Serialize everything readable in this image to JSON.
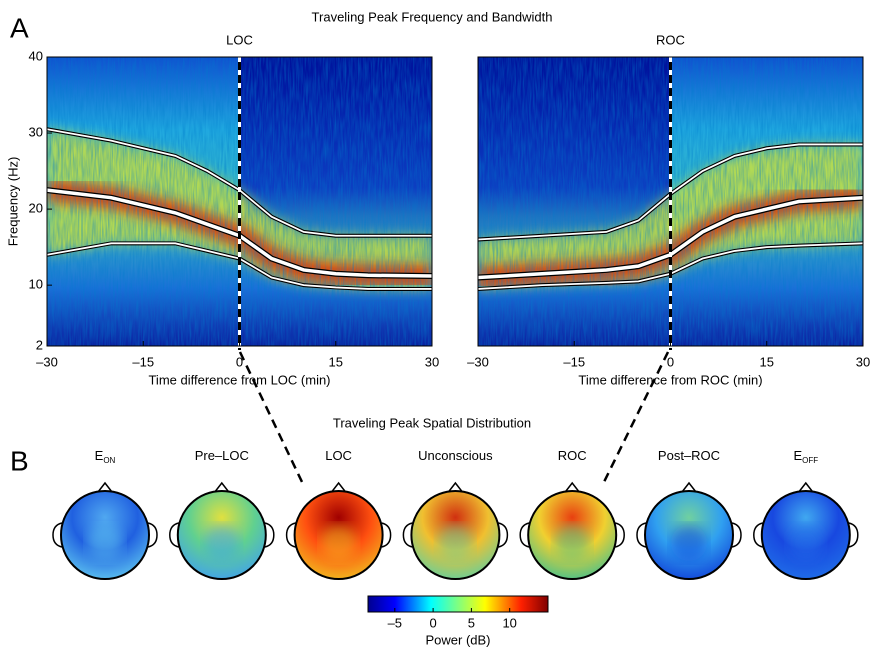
{
  "figure_title": "Traveling Peak Frequency and Bandwidth",
  "panel_label_a": "A",
  "panel_label_b": "B",
  "chart_data": [
    {
      "type": "line",
      "title": "LOC",
      "xlabel": "Time difference from LOC (min)",
      "ylabel": "Frequency (Hz)",
      "x": [
        -30,
        -20,
        -10,
        -5,
        0,
        5,
        10,
        15,
        20,
        30
      ],
      "series": [
        {
          "color": "#ffffff",
          "values": [
            30.5,
            29,
            27,
            25,
            22.5,
            19,
            17,
            16.5,
            16.5,
            16.5
          ]
        },
        {
          "color": "#ffffff",
          "values": [
            22.5,
            21.5,
            19.5,
            18,
            16.5,
            13.5,
            12,
            11.5,
            11.3,
            11.2
          ]
        },
        {
          "color": "#ffffff",
          "values": [
            14,
            15.5,
            15.5,
            14.5,
            13.5,
            11,
            10,
            9.7,
            9.5,
            9.5
          ]
        }
      ],
      "xlim": [
        -30,
        30
      ],
      "xticks": [
        {
          "value": -30,
          "label": "–30"
        },
        {
          "value": -15,
          "label": "–15"
        },
        0,
        15,
        30
      ],
      "ylim": [
        2,
        40
      ],
      "yticks": [
        2,
        10,
        20,
        30,
        40
      ]
    },
    {
      "type": "line",
      "title": "ROC",
      "xlabel": "Time difference from ROC (min)",
      "x": [
        -30,
        -20,
        -10,
        -5,
        0,
        5,
        10,
        15,
        20,
        30
      ],
      "series": [
        {
          "color": "#ffffff",
          "values": [
            16,
            16.5,
            17,
            18.5,
            22,
            25,
            27,
            28,
            28.5,
            28.5
          ]
        },
        {
          "color": "#ffffff",
          "values": [
            11,
            11.5,
            12,
            12.5,
            14,
            17,
            19,
            20,
            21,
            21.5
          ]
        },
        {
          "color": "#ffffff",
          "values": [
            9.5,
            10,
            10.3,
            10.5,
            11.5,
            13.5,
            14.5,
            15,
            15.2,
            15.5
          ]
        }
      ],
      "xlim": [
        -30,
        30
      ],
      "xticks": [
        {
          "value": -30,
          "label": "–30"
        },
        {
          "value": -15,
          "label": "–15"
        },
        0,
        15,
        30
      ],
      "ylim": [
        2,
        40
      ]
    }
  ],
  "spatial": {
    "title": "Traveling Peak Spatial Distribution",
    "maps": [
      {
        "text": "E",
        "sub": "ON"
      },
      {
        "text": "Pre–LOC"
      },
      {
        "text": "LOC"
      },
      {
        "text": "Unconscious"
      },
      {
        "text": "ROC"
      },
      {
        "text": "Post–ROC"
      },
      {
        "text": "E",
        "sub": "OFF"
      }
    ],
    "colorbar": {
      "label": "Power (dB)",
      "lim": [
        -8.5,
        15
      ],
      "ticks": [
        {
          "value": -5,
          "label": "–5"
        },
        0,
        5,
        10
      ]
    }
  }
}
